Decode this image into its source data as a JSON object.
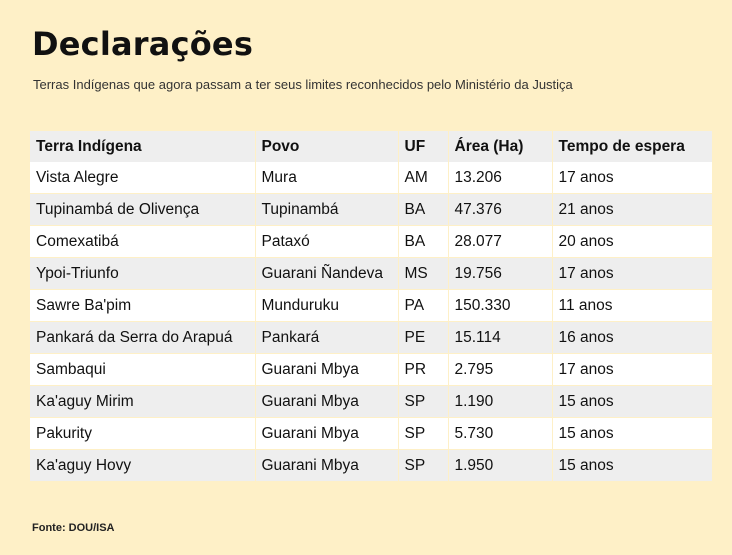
{
  "title": "Declarações",
  "subtitle": "Terras Indígenas que agora passam a ter seus limites reconhecidos pelo Ministério da Justiça",
  "source": "Fonte: DOU/ISA",
  "chart_data": {
    "type": "table",
    "columns": [
      "Terra Indígena",
      "Povo",
      "UF",
      "Área (Ha)",
      "Tempo de espera"
    ],
    "rows": [
      [
        "Vista Alegre",
        "Mura",
        "AM",
        "13.206",
        "17 anos"
      ],
      [
        "Tupinambá de Olivença",
        "Tupinambá",
        "BA",
        "47.376",
        "21 anos"
      ],
      [
        "Comexatibá",
        "Pataxó",
        "BA",
        "28.077",
        "20 anos"
      ],
      [
        "Ypoi-Triunfo",
        "Guarani Ñandeva",
        "MS",
        "19.756",
        "17 anos"
      ],
      [
        "Sawre Ba'pim",
        "Munduruku",
        "PA",
        "150.330",
        "11 anos"
      ],
      [
        "Pankará da Serra do Arapuá",
        "Pankará",
        "PE",
        "15.114",
        "16 anos"
      ],
      [
        "Sambaqui",
        "Guarani Mbya",
        "PR",
        "2.795",
        "17 anos"
      ],
      [
        "Ka'aguy Mirim",
        "Guarani Mbya",
        "SP",
        "1.190",
        "15 anos"
      ],
      [
        "Pakurity",
        "Guarani Mbya",
        "SP",
        "5.730",
        "15 anos"
      ],
      [
        "Ka'aguy Hovy",
        "Guarani Mbya",
        "SP",
        "1.950",
        "15 anos"
      ]
    ]
  }
}
